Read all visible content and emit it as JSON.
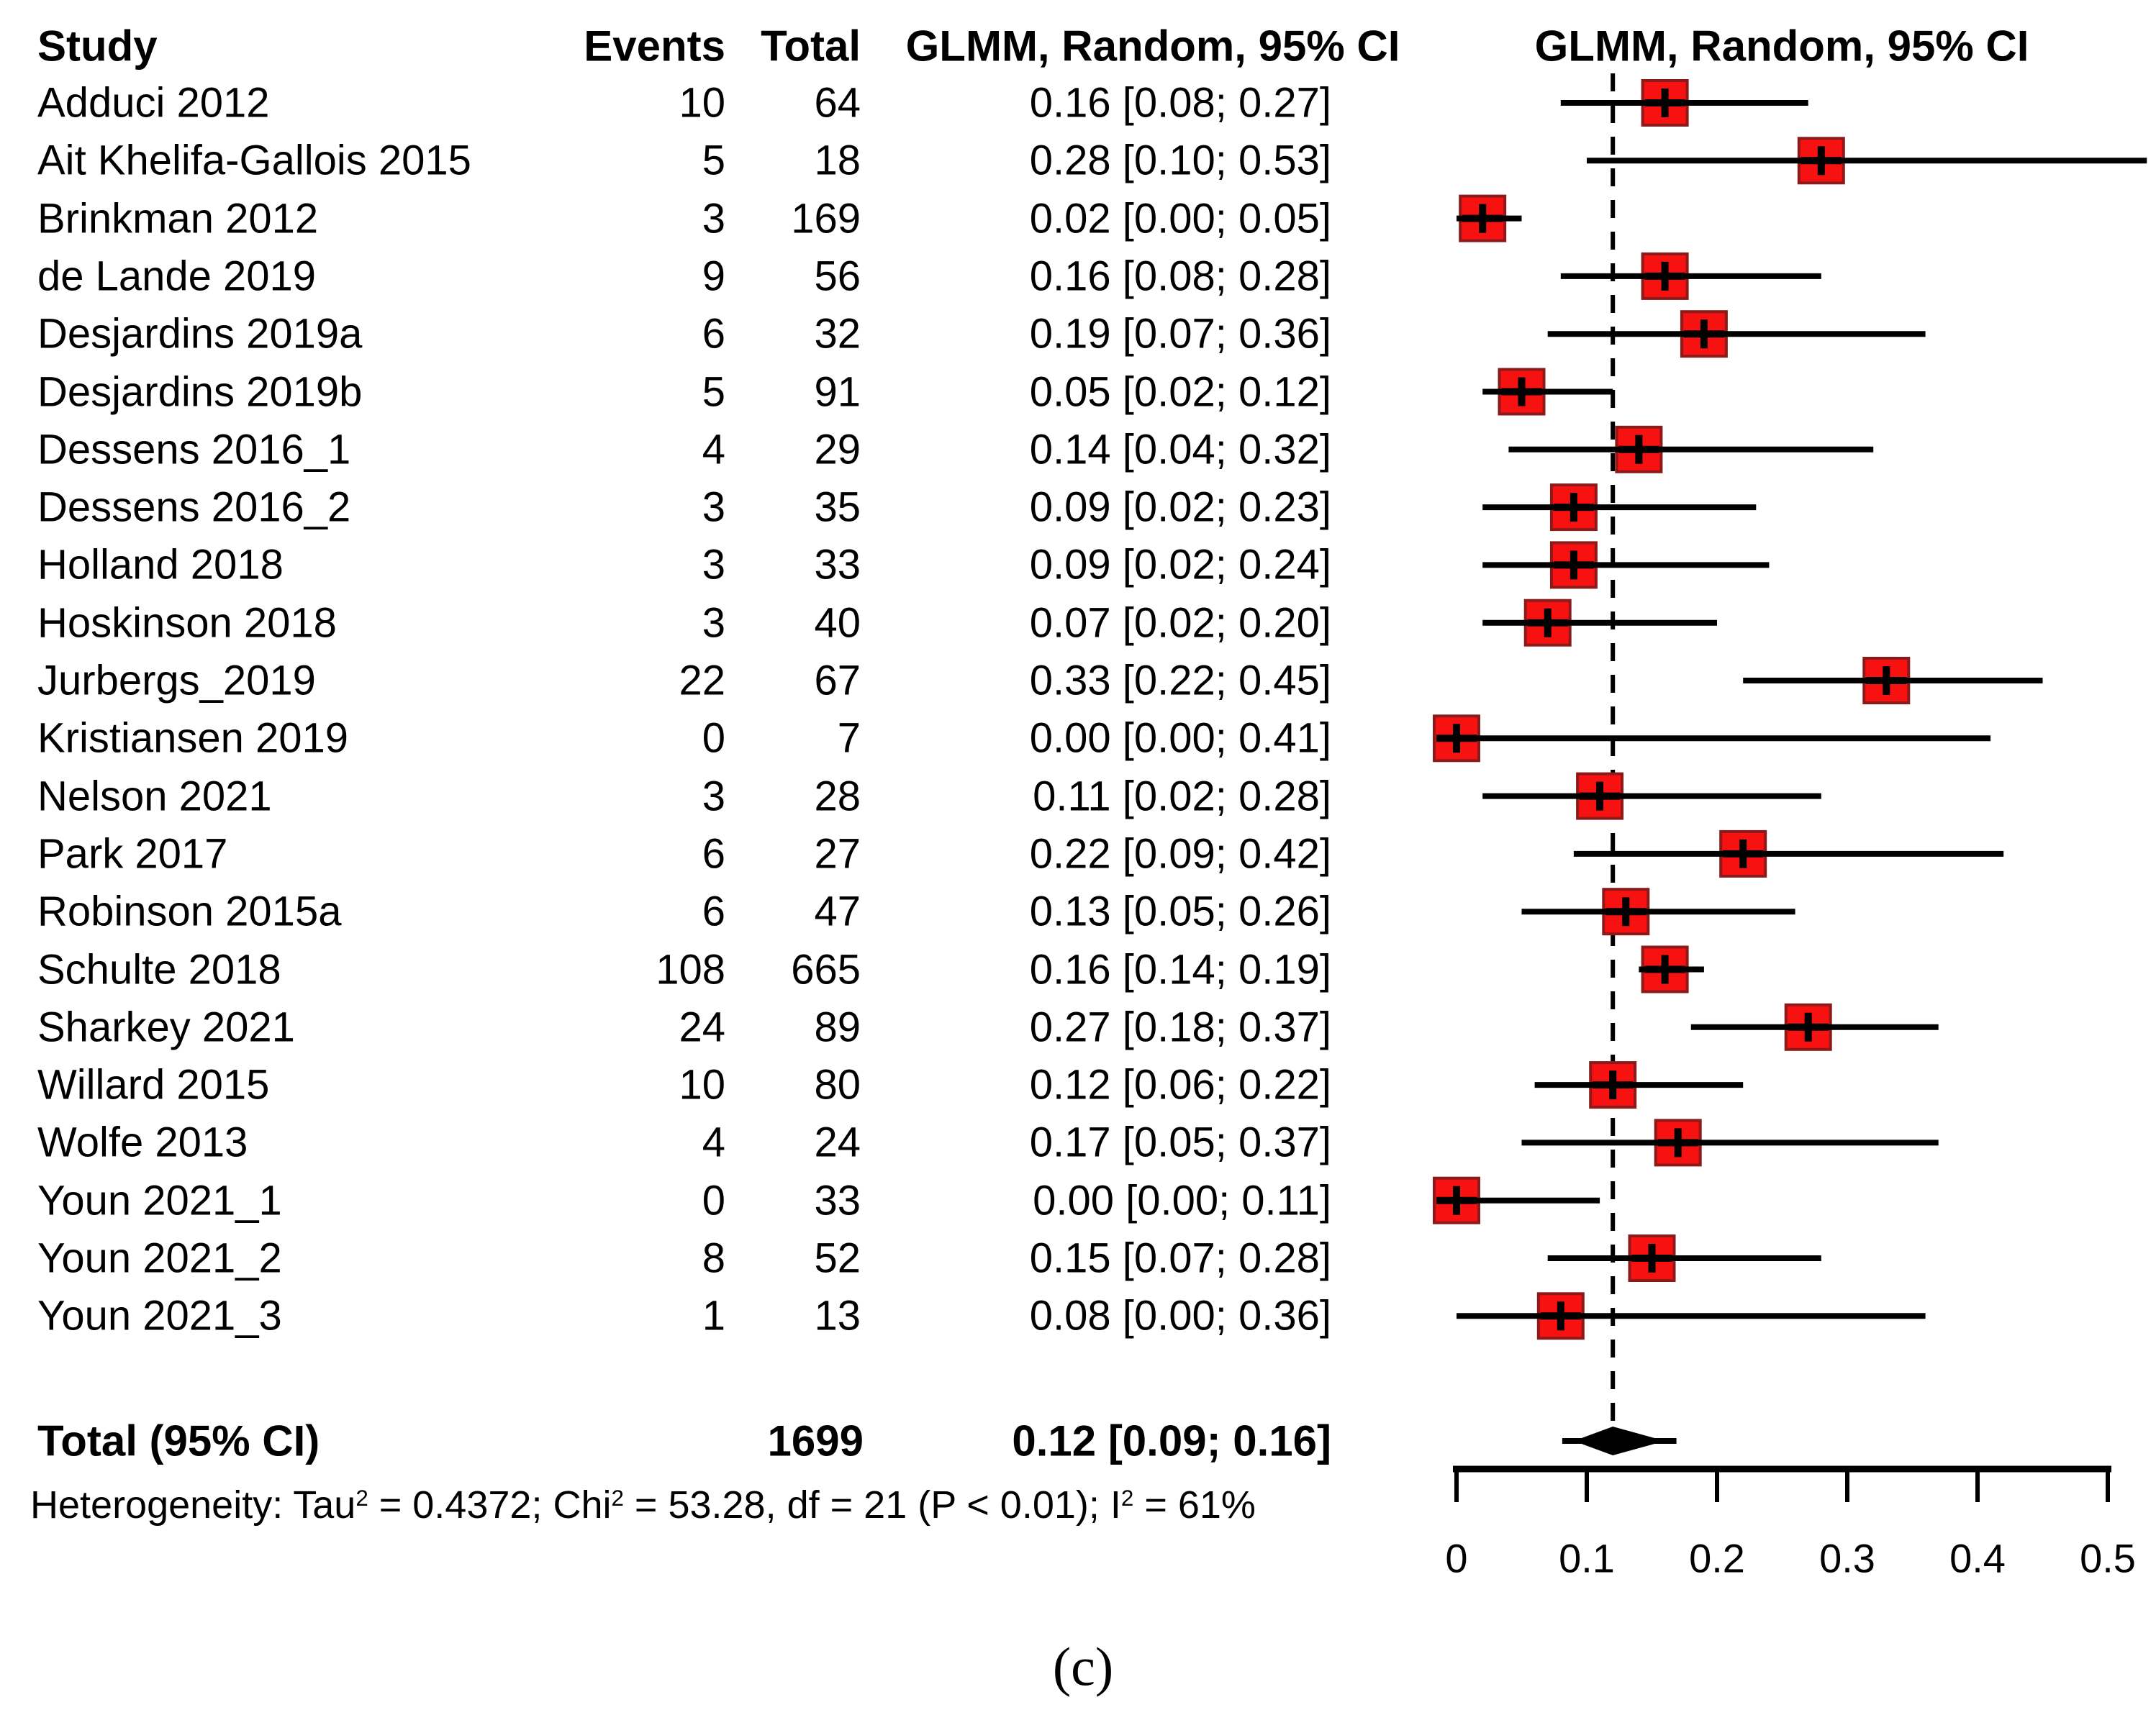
{
  "chart_data": {
    "type": "scatter",
    "variant": "forest-plot-meta-analysis",
    "title": "",
    "columns": {
      "study": "Study",
      "events": "Events",
      "total": "Total",
      "effect": "GLMM, Random, 95% CI"
    },
    "plot_column_header": "GLMM, Random, 95% CI",
    "x_axis": {
      "range": [
        0,
        0.5
      ],
      "ticks": [
        0,
        0.1,
        0.2,
        0.3,
        0.4,
        0.5
      ],
      "tick_labels": [
        "0",
        "0.1",
        "0.2",
        "0.3",
        "0.4",
        "0.5"
      ],
      "grid": false
    },
    "reference_line_at": 0.12,
    "colors": {
      "marker": "#f81111",
      "marker_border": "#8b1a1a",
      "line": "#000000",
      "diamond": "#000000",
      "text": "#000000",
      "background": "#ffffff"
    },
    "studies": [
      {
        "name": "Adduci 2012",
        "events": "10",
        "total": "64",
        "estimate": 0.16,
        "ci_low": 0.08,
        "ci_high": 0.27,
        "ci_text": "0.16 [0.08; 0.27]"
      },
      {
        "name": "Ait Khelifa-Gallois 2015",
        "events": "5",
        "total": "18",
        "estimate": 0.28,
        "ci_low": 0.1,
        "ci_high": 0.53,
        "ci_text": "0.28 [0.10; 0.53]"
      },
      {
        "name": "Brinkman 2012",
        "events": "3",
        "total": "169",
        "estimate": 0.02,
        "ci_low": 0.0,
        "ci_high": 0.05,
        "ci_text": "0.02 [0.00; 0.05]"
      },
      {
        "name": "de Lande 2019",
        "events": "9",
        "total": "56",
        "estimate": 0.16,
        "ci_low": 0.08,
        "ci_high": 0.28,
        "ci_text": "0.16 [0.08; 0.28]"
      },
      {
        "name": "Desjardins 2019a",
        "events": "6",
        "total": "32",
        "estimate": 0.19,
        "ci_low": 0.07,
        "ci_high": 0.36,
        "ci_text": "0.19 [0.07; 0.36]"
      },
      {
        "name": "Desjardins 2019b",
        "events": "5",
        "total": "91",
        "estimate": 0.05,
        "ci_low": 0.02,
        "ci_high": 0.12,
        "ci_text": "0.05 [0.02; 0.12]"
      },
      {
        "name": "Dessens 2016_1",
        "events": "4",
        "total": "29",
        "estimate": 0.14,
        "ci_low": 0.04,
        "ci_high": 0.32,
        "ci_text": "0.14 [0.04; 0.32]"
      },
      {
        "name": "Dessens 2016_2",
        "events": "3",
        "total": "35",
        "estimate": 0.09,
        "ci_low": 0.02,
        "ci_high": 0.23,
        "ci_text": "0.09 [0.02; 0.23]"
      },
      {
        "name": "Holland 2018",
        "events": "3",
        "total": "33",
        "estimate": 0.09,
        "ci_low": 0.02,
        "ci_high": 0.24,
        "ci_text": "0.09 [0.02; 0.24]"
      },
      {
        "name": "Hoskinson 2018",
        "events": "3",
        "total": "40",
        "estimate": 0.07,
        "ci_low": 0.02,
        "ci_high": 0.2,
        "ci_text": "0.07 [0.02; 0.20]"
      },
      {
        "name": "Jurbergs_2019",
        "events": "22",
        "total": "67",
        "estimate": 0.33,
        "ci_low": 0.22,
        "ci_high": 0.45,
        "ci_text": "0.33 [0.22; 0.45]"
      },
      {
        "name": "Kristiansen 2019",
        "events": "0",
        "total": "7",
        "estimate": 0.0,
        "ci_low": 0.0,
        "ci_high": 0.41,
        "ci_text": "0.00 [0.00; 0.41]"
      },
      {
        "name": "Nelson 2021",
        "events": "3",
        "total": "28",
        "estimate": 0.11,
        "ci_low": 0.02,
        "ci_high": 0.28,
        "ci_text": "0.11 [0.02; 0.28]"
      },
      {
        "name": "Park 2017",
        "events": "6",
        "total": "27",
        "estimate": 0.22,
        "ci_low": 0.09,
        "ci_high": 0.42,
        "ci_text": "0.22 [0.09; 0.42]"
      },
      {
        "name": "Robinson 2015a",
        "events": "6",
        "total": "47",
        "estimate": 0.13,
        "ci_low": 0.05,
        "ci_high": 0.26,
        "ci_text": "0.13 [0.05; 0.26]"
      },
      {
        "name": "Schulte 2018",
        "events": "108",
        "total": "665",
        "estimate": 0.16,
        "ci_low": 0.14,
        "ci_high": 0.19,
        "ci_text": "0.16 [0.14; 0.19]"
      },
      {
        "name": "Sharkey 2021",
        "events": "24",
        "total": "89",
        "estimate": 0.27,
        "ci_low": 0.18,
        "ci_high": 0.37,
        "ci_text": "0.27 [0.18; 0.37]"
      },
      {
        "name": "Willard 2015",
        "events": "10",
        "total": "80",
        "estimate": 0.12,
        "ci_low": 0.06,
        "ci_high": 0.22,
        "ci_text": "0.12 [0.06; 0.22]"
      },
      {
        "name": "Wolfe 2013",
        "events": "4",
        "total": "24",
        "estimate": 0.17,
        "ci_low": 0.05,
        "ci_high": 0.37,
        "ci_text": "0.17 [0.05; 0.37]"
      },
      {
        "name": "Youn 2021_1",
        "events": "0",
        "total": "33",
        "estimate": 0.0,
        "ci_low": 0.0,
        "ci_high": 0.11,
        "ci_text": "0.00 [0.00; 0.11]"
      },
      {
        "name": "Youn 2021_2",
        "events": "8",
        "total": "52",
        "estimate": 0.15,
        "ci_low": 0.07,
        "ci_high": 0.28,
        "ci_text": "0.15 [0.07; 0.28]"
      },
      {
        "name": "Youn 2021_3",
        "events": "1",
        "total": "13",
        "estimate": 0.08,
        "ci_low": 0.0,
        "ci_high": 0.36,
        "ci_text": "0.08 [0.00; 0.36]"
      }
    ],
    "total_row": {
      "label": "Total (95% CI)",
      "events": "",
      "total": "1699",
      "estimate": 0.12,
      "ci_low": 0.09,
      "ci_high": 0.16,
      "ci_text": "0.12 [0.09; 0.16]"
    },
    "heterogeneity_parts": [
      {
        "t": "Heterogeneity: Tau",
        "sup": false
      },
      {
        "t": "2",
        "sup": true
      },
      {
        "t": " = 0.4372; Chi",
        "sup": false
      },
      {
        "t": "2",
        "sup": true
      },
      {
        "t": " = 53.28, df = 21 (P < 0.01); I",
        "sup": false
      },
      {
        "t": "2",
        "sup": true
      },
      {
        "t": " = 61%",
        "sup": false
      }
    ],
    "caption": "(c)"
  }
}
